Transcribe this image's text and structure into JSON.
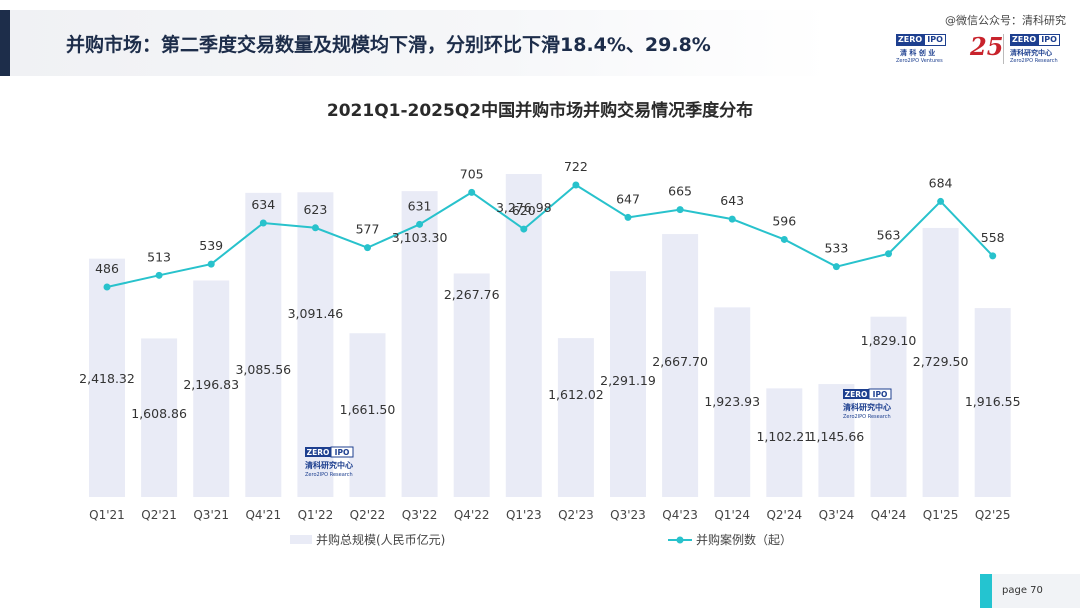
{
  "header": {
    "title": "并购市场：第二季度交易数量及规模均下滑，分别环比下滑18.4%、29.8%",
    "watermark": "@微信公众号：清科研究"
  },
  "logos": {
    "zero": "ZERO",
    "ipo": "IPO",
    "ventures_cn": "清 科 创 业",
    "ventures_en": "Zero2IPO Ventures",
    "anniversary": "25",
    "research_cn": "清科研究中心",
    "research_en": "Zero2IPO Research"
  },
  "page": {
    "number": "page  70"
  },
  "colors": {
    "bar": "#e9ebf6",
    "line": "#28c2cc",
    "title": "#1d2d4a",
    "accent": "#24c4d0"
  },
  "chart_data": {
    "type": "bar",
    "title": "2021Q1-2025Q2中国并购市场并购交易情况季度分布",
    "categories": [
      "Q1'21",
      "Q2'21",
      "Q3'21",
      "Q4'21",
      "Q1'22",
      "Q2'22",
      "Q3'22",
      "Q4'22",
      "Q1'23",
      "Q2'23",
      "Q3'23",
      "Q4'23",
      "Q1'24",
      "Q2'24",
      "Q3'24",
      "Q4'24",
      "Q1'25",
      "Q2'25"
    ],
    "series": [
      {
        "name": "并购总规模(人民币亿元)",
        "type": "bar",
        "values": [
          2418.32,
          1608.86,
          2196.83,
          3085.56,
          3091.46,
          1661.5,
          3103.3,
          2267.76,
          3276.98,
          1612.02,
          2291.19,
          2667.7,
          1923.93,
          1102.21,
          1145.66,
          1829.1,
          2729.5,
          1916.55
        ],
        "labels": [
          "2,418.32",
          "1,608.86",
          "2,196.83",
          "3,085.56",
          "3,091.46",
          "1,661.50",
          "3,103.30",
          "2,267.76",
          "3,276.98",
          "1,612.02",
          "2,291.19",
          "2,667.70",
          "1,923.93",
          "1,102.21",
          "1,145.66",
          "1,829.10",
          "2,729.50",
          "1,916.55"
        ]
      },
      {
        "name": "并购案例数（起）",
        "type": "line",
        "values": [
          486,
          513,
          539,
          634,
          623,
          577,
          631,
          705,
          620,
          722,
          647,
          665,
          643,
          596,
          533,
          563,
          684,
          558
        ],
        "labels": [
          "486",
          "513",
          "539",
          "634",
          "623",
          "577",
          "631",
          "705",
          "620",
          "722",
          "647",
          "665",
          "643",
          "596",
          "533",
          "563",
          "684",
          "558"
        ]
      }
    ],
    "legend_position": "bottom",
    "grid": false
  }
}
